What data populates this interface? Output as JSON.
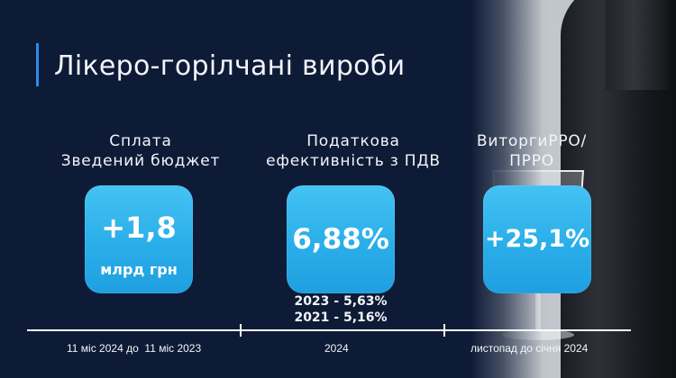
{
  "title": "Лікеро-горілчані вироби",
  "columns": [
    {
      "label_lines": [
        "Сплата",
        "Зведений бюджет"
      ],
      "card": {
        "value": "+1,8",
        "unit": "млрд грн"
      },
      "notes": []
    },
    {
      "label_lines": [
        "Податкова",
        "ефективність з ПДВ"
      ],
      "card": {
        "value": "6,88%",
        "unit": ""
      },
      "notes": [
        "2023 - 5,63%",
        "2021 - 5,16%"
      ]
    },
    {
      "label_lines": [
        "ВиторгиРРО/",
        "ПРРО"
      ],
      "card": {
        "value": "+25,1%",
        "unit": ""
      },
      "notes": []
    }
  ],
  "timeline": {
    "labels": [
      "11 міс 2024 до  11 міс 2023",
      "2024",
      "листопад до січня 2024"
    ]
  },
  "colors": {
    "background": "#0e1b36",
    "card": "#2aaee9",
    "accent": "#2a8cf2",
    "text": "#f2f5fa"
  }
}
